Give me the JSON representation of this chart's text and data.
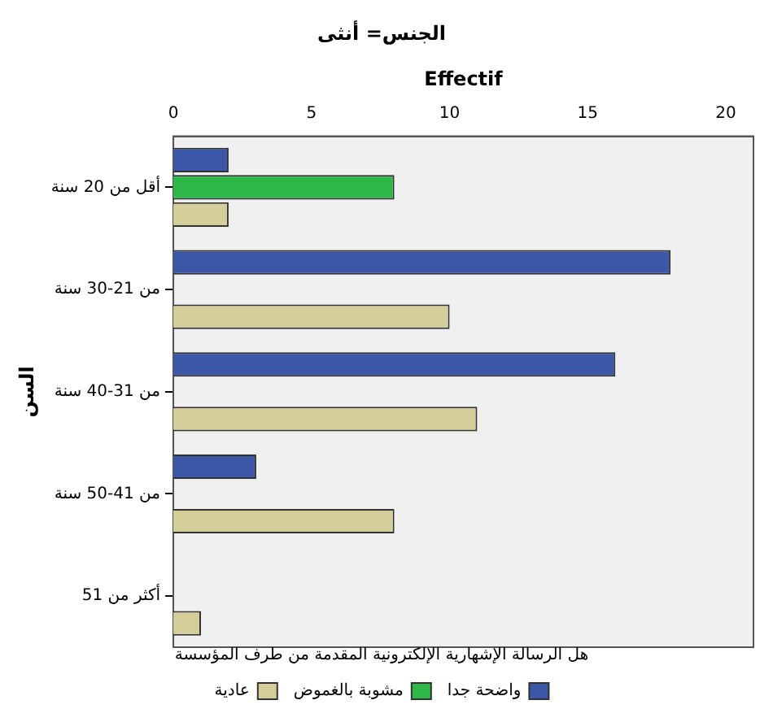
{
  "chart_data": {
    "type": "bar",
    "orientation": "horizontal",
    "title": "الجنس= أنثى",
    "xlabel": "Effectif",
    "ylabel": "السن",
    "legend_title": "هل الرسالة الإشهارية الإلكترونية المقدمة من طرف المؤسسة",
    "categories": [
      "أقل من 20 سنة",
      "من 21-30 سنة",
      "من 31-40 سنة",
      "من 41-50 سنة",
      "أكثر من 51"
    ],
    "series": [
      {
        "name": "واضحة جدا",
        "color": "#3c56a8",
        "values": [
          2,
          18,
          16,
          3,
          0
        ]
      },
      {
        "name": "مشوبة بالغموض",
        "color": "#2eb84a",
        "values": [
          8,
          0,
          0,
          0,
          0
        ]
      },
      {
        "name": "عادية",
        "color": "#d4cf9a",
        "values": [
          2,
          10,
          11,
          8,
          1
        ]
      }
    ],
    "xlim": [
      0,
      21
    ],
    "xticks": [
      0,
      5,
      10,
      15,
      20
    ],
    "grid": false,
    "legend": "bottom"
  }
}
